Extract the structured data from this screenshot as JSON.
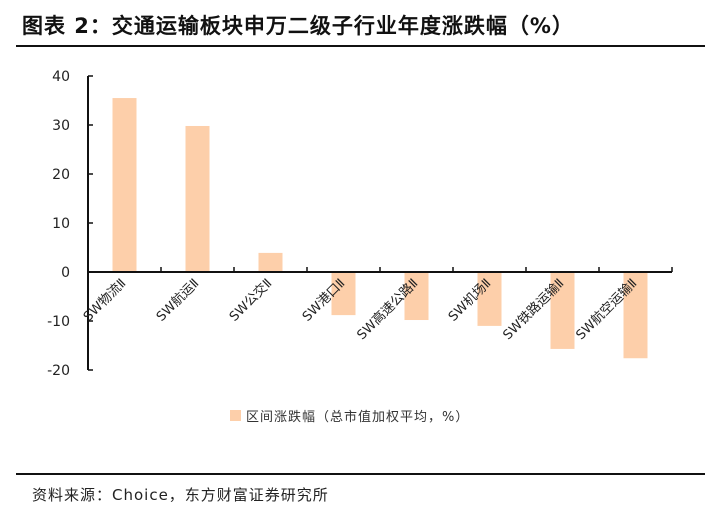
{
  "title": "图表 2：交通运输板块申万二级子行业年度涨跌幅（%）",
  "source": "资料来源：Choice，东方财富证券研究所",
  "colors": {
    "bar": "#FDCFAA",
    "axis": "#111111"
  },
  "legend": {
    "label": "区间涨跌幅（总市值加权平均，%）"
  },
  "chart_data": {
    "type": "bar",
    "title": "图表 2：交通运输板块申万二级子行业年度涨跌幅（%）",
    "xlabel": "",
    "ylabel": "",
    "categories": [
      "SW物流Ⅱ",
      "SW航运Ⅱ",
      "SW公交Ⅱ",
      "SW港口Ⅱ",
      "SW高速公路Ⅱ",
      "SW机场Ⅱ",
      "SW铁路运输Ⅱ",
      "SW航空运输Ⅱ"
    ],
    "series": [
      {
        "name": "区间涨跌幅（总市值加权平均，%）",
        "values": [
          35.5,
          29.8,
          3.9,
          -8.8,
          -9.8,
          -11.0,
          -15.7,
          -17.6
        ]
      }
    ],
    "ylim": [
      -20,
      40
    ],
    "yticks": [
      40,
      30,
      20,
      10,
      0,
      -10,
      -20
    ],
    "grid": false,
    "legend_position": "bottom"
  }
}
